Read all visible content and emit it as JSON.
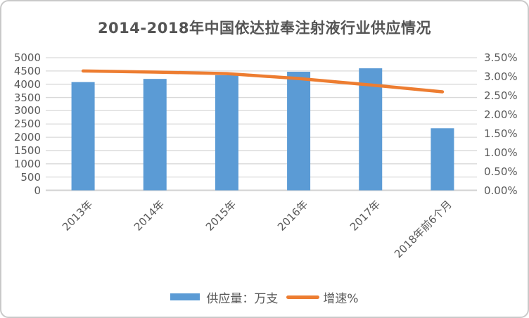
{
  "chart_data": {
    "type": "bar",
    "subtype": "bar+line combo",
    "title": "2014-2018年中国依达拉奉注射液行业供应情况",
    "categories": [
      "2013年",
      "2014年",
      "2015年",
      "2016年",
      "2017年",
      "2018年前6个月"
    ],
    "series": [
      {
        "name": "供应量：万支",
        "type": "bar",
        "axis": "left",
        "color": "#5B9BD5",
        "values": [
          4080,
          4200,
          4340,
          4470,
          4600,
          2340
        ]
      },
      {
        "name": "增速%",
        "type": "line",
        "axis": "right",
        "color": "#ED7D31",
        "values": [
          3.15,
          3.12,
          3.08,
          2.95,
          2.78,
          2.6
        ]
      }
    ],
    "left_axis": {
      "min": 0,
      "max": 5000,
      "step": 500,
      "ticks": [
        "5000",
        "4500",
        "4000",
        "3500",
        "3000",
        "2500",
        "2000",
        "1500",
        "1000",
        "500",
        "0"
      ]
    },
    "right_axis": {
      "min": 0,
      "max": 3.5,
      "step": 0.5,
      "ticks": [
        "3.50%",
        "3.00%",
        "2.50%",
        "2.00%",
        "1.50%",
        "1.00%",
        "0.50%",
        "0.00%"
      ]
    },
    "grid": true,
    "legend_position": "bottom",
    "x_label_rotation_deg": 45
  },
  "colors": {
    "bar": "#5B9BD5",
    "line": "#ED7D31",
    "gridline": "#D9D9D9",
    "axis_line": "#D2D2D2",
    "axis_text": "#595959",
    "title_text": "#555555",
    "frame_border": "#C9C9C9",
    "background": "#FFFFFF"
  }
}
